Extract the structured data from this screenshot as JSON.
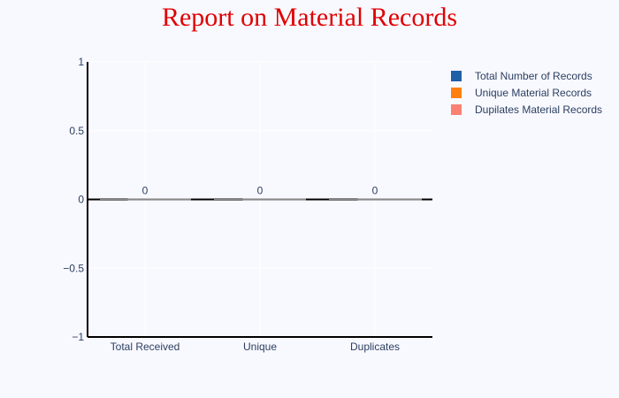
{
  "chart_data": {
    "type": "bar",
    "title": "Report on Material Records",
    "categories": [
      "Total Received",
      "Unique",
      "Duplicates"
    ],
    "series": [
      {
        "name": "Total Number of Records",
        "values": [
          0,
          0,
          0
        ],
        "color": "#1f5fa6"
      },
      {
        "name": "Unique Material Records",
        "values": [
          0,
          0,
          0
        ],
        "color": "#ff7f0e"
      },
      {
        "name": "Dupilates Material Records",
        "values": [
          0,
          0,
          0
        ],
        "color": "#fa8072"
      }
    ],
    "data_labels": [
      "0",
      "0",
      "0"
    ],
    "y_ticks": [
      "1",
      "0.5",
      "0",
      "−0.5",
      "−1"
    ],
    "ylim": [
      -1,
      1
    ],
    "xlabel": "",
    "ylabel": "",
    "grid": true,
    "legend_position": "top-right",
    "colors": {
      "background": "#f8f8ff",
      "title": "#e00000",
      "text": "#2a3f5f",
      "grid": "#ffffff",
      "axis": "#000000"
    }
  }
}
